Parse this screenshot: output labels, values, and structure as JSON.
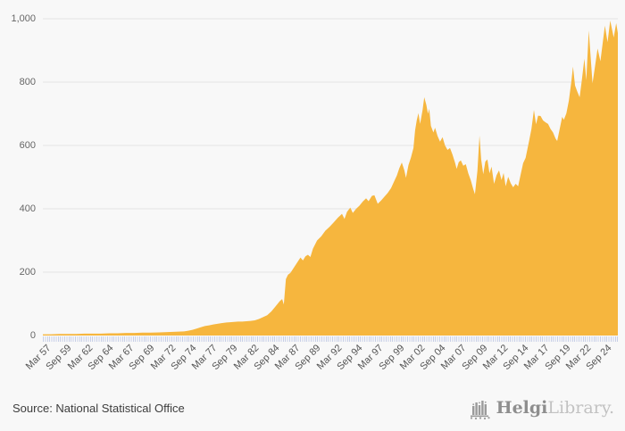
{
  "chart_data": {
    "type": "area",
    "title": "",
    "x_labels": [
      "Mar 57",
      "Sep 59",
      "Mar 62",
      "Sep 64",
      "Mar 67",
      "Sep 69",
      "Mar 72",
      "Sep 74",
      "Mar 77",
      "Sep 79",
      "Mar 82",
      "Sep 84",
      "Mar 87",
      "Sep 89",
      "Mar 92",
      "Sep 94",
      "Mar 97",
      "Sep 99",
      "Mar 02",
      "Sep 04",
      "Mar 07",
      "Sep 09",
      "Mar 12",
      "Sep 14",
      "Mar 17",
      "Sep 19",
      "Mar 22",
      "Sep 24"
    ],
    "x_label_interval_months": 30,
    "y_ticks": [
      "0",
      "200",
      "400",
      "600",
      "800",
      "1,000"
    ],
    "ylim": [
      0,
      1000
    ],
    "x_domain": [
      1957.2,
      2026.4
    ],
    "grid": "horizontal",
    "legend": "none",
    "series_name": "value",
    "colors": {
      "area_fill": "#f6b63e",
      "gridline": "#e4e4e4",
      "axis_tick": "#c7cfe7",
      "y_label": "#666666",
      "x_label": "#555555",
      "background": "#f8f8f8"
    },
    "points": [
      [
        1957.2,
        4
      ],
      [
        1958.2,
        4
      ],
      [
        1959.2,
        5
      ],
      [
        1960.2,
        5
      ],
      [
        1961.2,
        5
      ],
      [
        1962.2,
        6
      ],
      [
        1963.2,
        6
      ],
      [
        1964.2,
        6
      ],
      [
        1965.2,
        7
      ],
      [
        1966.2,
        7
      ],
      [
        1967.2,
        8
      ],
      [
        1968.2,
        8
      ],
      [
        1969.2,
        9
      ],
      [
        1970.2,
        9
      ],
      [
        1971.2,
        10
      ],
      [
        1972.2,
        11
      ],
      [
        1973.2,
        12
      ],
      [
        1974.2,
        13
      ],
      [
        1974.7,
        15
      ],
      [
        1975.2,
        18
      ],
      [
        1975.7,
        22
      ],
      [
        1976.2,
        26
      ],
      [
        1976.7,
        30
      ],
      [
        1977.2,
        32
      ],
      [
        1977.7,
        35
      ],
      [
        1978.2,
        37
      ],
      [
        1978.7,
        39
      ],
      [
        1979.2,
        41
      ],
      [
        1979.7,
        42
      ],
      [
        1980.2,
        43
      ],
      [
        1980.7,
        44
      ],
      [
        1981.2,
        44
      ],
      [
        1981.7,
        45
      ],
      [
        1982.2,
        46
      ],
      [
        1982.7,
        48
      ],
      [
        1983.2,
        52
      ],
      [
        1983.7,
        58
      ],
      [
        1984.2,
        64
      ],
      [
        1984.7,
        76
      ],
      [
        1985.2,
        92
      ],
      [
        1985.7,
        108
      ],
      [
        1986.0,
        115
      ],
      [
        1986.2,
        98
      ],
      [
        1986.45,
        178
      ],
      [
        1986.7,
        192
      ],
      [
        1987.0,
        198
      ],
      [
        1987.2,
        206
      ],
      [
        1987.7,
        226
      ],
      [
        1988.2,
        246
      ],
      [
        1988.5,
        237
      ],
      [
        1988.8,
        250
      ],
      [
        1989.1,
        255
      ],
      [
        1989.4,
        248
      ],
      [
        1989.7,
        274
      ],
      [
        1990.2,
        300
      ],
      [
        1990.7,
        313
      ],
      [
        1991.2,
        331
      ],
      [
        1991.7,
        343
      ],
      [
        1992.2,
        357
      ],
      [
        1992.7,
        372
      ],
      [
        1993.2,
        384
      ],
      [
        1993.5,
        368
      ],
      [
        1993.8,
        390
      ],
      [
        1994.2,
        404
      ],
      [
        1994.5,
        387
      ],
      [
        1994.9,
        400
      ],
      [
        1995.3,
        410
      ],
      [
        1995.7,
        423
      ],
      [
        1996.1,
        433
      ],
      [
        1996.4,
        424
      ],
      [
        1996.8,
        441
      ],
      [
        1997.1,
        443
      ],
      [
        1997.5,
        416
      ],
      [
        1997.9,
        426
      ],
      [
        1998.3,
        438
      ],
      [
        1998.7,
        450
      ],
      [
        1999.1,
        465
      ],
      [
        1999.5,
        488
      ],
      [
        1999.8,
        505
      ],
      [
        2000.1,
        528
      ],
      [
        2000.4,
        546
      ],
      [
        2000.7,
        522
      ],
      [
        2000.9,
        498
      ],
      [
        2001.2,
        538
      ],
      [
        2001.5,
        562
      ],
      [
        2001.8,
        592
      ],
      [
        2002.0,
        648
      ],
      [
        2002.2,
        680
      ],
      [
        2002.4,
        702
      ],
      [
        2002.6,
        668
      ],
      [
        2002.9,
        712
      ],
      [
        2003.1,
        752
      ],
      [
        2003.35,
        728
      ],
      [
        2003.55,
        700
      ],
      [
        2003.7,
        716
      ],
      [
        2003.9,
        662
      ],
      [
        2004.2,
        641
      ],
      [
        2004.4,
        656
      ],
      [
        2004.7,
        630
      ],
      [
        2005.0,
        612
      ],
      [
        2005.3,
        626
      ],
      [
        2005.6,
        600
      ],
      [
        2005.9,
        586
      ],
      [
        2006.2,
        592
      ],
      [
        2006.5,
        571
      ],
      [
        2006.8,
        546
      ],
      [
        2007.0,
        526
      ],
      [
        2007.25,
        547
      ],
      [
        2007.5,
        553
      ],
      [
        2007.8,
        536
      ],
      [
        2008.1,
        541
      ],
      [
        2008.4,
        512
      ],
      [
        2008.7,
        490
      ],
      [
        2009.0,
        462
      ],
      [
        2009.2,
        446
      ],
      [
        2009.5,
        520
      ],
      [
        2009.75,
        631
      ],
      [
        2009.95,
        556
      ],
      [
        2010.2,
        509
      ],
      [
        2010.45,
        549
      ],
      [
        2010.7,
        556
      ],
      [
        2010.95,
        512
      ],
      [
        2011.2,
        533
      ],
      [
        2011.5,
        479
      ],
      [
        2011.8,
        506
      ],
      [
        2012.1,
        521
      ],
      [
        2012.4,
        491
      ],
      [
        2012.65,
        513
      ],
      [
        2012.9,
        471
      ],
      [
        2013.2,
        501
      ],
      [
        2013.5,
        481
      ],
      [
        2013.8,
        468
      ],
      [
        2014.1,
        479
      ],
      [
        2014.4,
        471
      ],
      [
        2014.7,
        508
      ],
      [
        2015.0,
        544
      ],
      [
        2015.3,
        561
      ],
      [
        2015.7,
        612
      ],
      [
        2016.0,
        652
      ],
      [
        2016.3,
        712
      ],
      [
        2016.55,
        667
      ],
      [
        2016.8,
        694
      ],
      [
        2017.1,
        693
      ],
      [
        2017.4,
        679
      ],
      [
        2017.7,
        673
      ],
      [
        2018.0,
        668
      ],
      [
        2018.3,
        652
      ],
      [
        2018.6,
        641
      ],
      [
        2018.9,
        622
      ],
      [
        2019.1,
        614
      ],
      [
        2019.4,
        652
      ],
      [
        2019.7,
        690
      ],
      [
        2019.9,
        681
      ],
      [
        2020.2,
        701
      ],
      [
        2020.5,
        741
      ],
      [
        2020.8,
        801
      ],
      [
        2021.0,
        849
      ],
      [
        2021.25,
        789
      ],
      [
        2021.5,
        771
      ],
      [
        2021.8,
        752
      ],
      [
        2022.05,
        803
      ],
      [
        2022.37,
        874
      ],
      [
        2022.6,
        806
      ],
      [
        2022.9,
        963
      ],
      [
        2023.15,
        870
      ],
      [
        2023.35,
        796
      ],
      [
        2023.6,
        840
      ],
      [
        2023.96,
        906
      ],
      [
        2024.3,
        866
      ],
      [
        2024.84,
        978
      ],
      [
        2025.16,
        926
      ],
      [
        2025.48,
        994
      ],
      [
        2025.9,
        941
      ],
      [
        2026.2,
        986
      ],
      [
        2026.4,
        955
      ]
    ]
  },
  "footer": {
    "source": "Source: National Statistical Office"
  },
  "logo": {
    "brand_bold": "Helgi",
    "brand_light": "Library."
  }
}
